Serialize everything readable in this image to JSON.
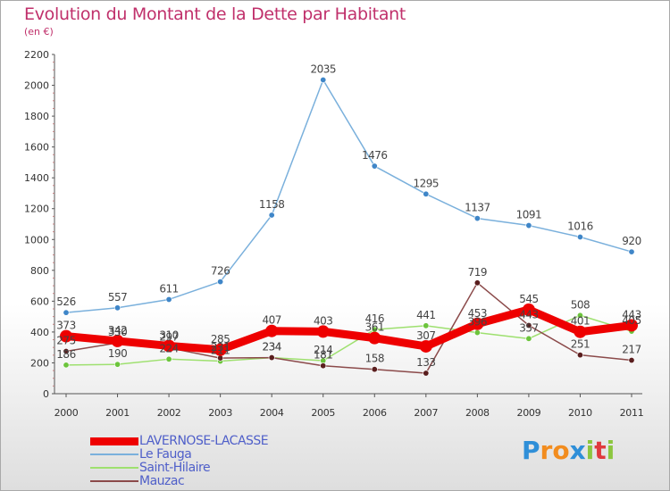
{
  "title": "Evolution du Montant de la Dette par Habitant",
  "subtitle": "(en €)",
  "logo": {
    "text": "Proxiti",
    "letters": [
      "P",
      "r",
      "o",
      "x",
      "i",
      "t",
      "i"
    ],
    "colors": [
      "#2f8fd8",
      "#f28c1e",
      "#f28c1e",
      "#2f8fd8",
      "#8cc63f",
      "#e03a3e",
      "#8cc63f"
    ]
  },
  "chart_data": {
    "type": "line",
    "x": [
      "2000",
      "2001",
      "2002",
      "2003",
      "2004",
      "2005",
      "2006",
      "2007",
      "2008",
      "2009",
      "2010",
      "2011"
    ],
    "ylim": [
      0,
      2200
    ],
    "yticks": [
      0,
      200,
      400,
      600,
      800,
      1000,
      1200,
      1400,
      1600,
      1800,
      2000,
      2200
    ],
    "grid": false,
    "legend_position": "bottom-left",
    "series": [
      {
        "name": "Le Fauga",
        "color": "#7ab0dc",
        "marker": "#3f86c8",
        "values": [
          526,
          557,
          611,
          726,
          1158,
          2035,
          1476,
          1295,
          1137,
          1091,
          1016,
          920
        ]
      },
      {
        "name": "Saint-Hilaire",
        "color": "#9ee06f",
        "marker": "#6cc43c",
        "values": [
          186,
          190,
          224,
          211,
          234,
          214,
          416,
          441,
          396,
          357,
          508,
          405
        ]
      },
      {
        "name": "Mauzac",
        "color": "#8b4a4a",
        "marker": "#5a1e1e",
        "values": [
          275,
          330,
          297,
          231,
          234,
          181,
          158,
          133,
          719,
          443,
          251,
          217
        ]
      },
      {
        "name": "LAVERNOSE-LACASSE",
        "color": "#ee0000",
        "marker": "#ee0000",
        "values": [
          373,
          342,
          310,
          285,
          407,
          403,
          361,
          307,
          453,
          545,
          401,
          443
        ]
      }
    ],
    "legend_order": [
      "LAVERNOSE-LACASSE",
      "Le Fauga",
      "Saint-Hilaire",
      "Mauzac"
    ]
  }
}
